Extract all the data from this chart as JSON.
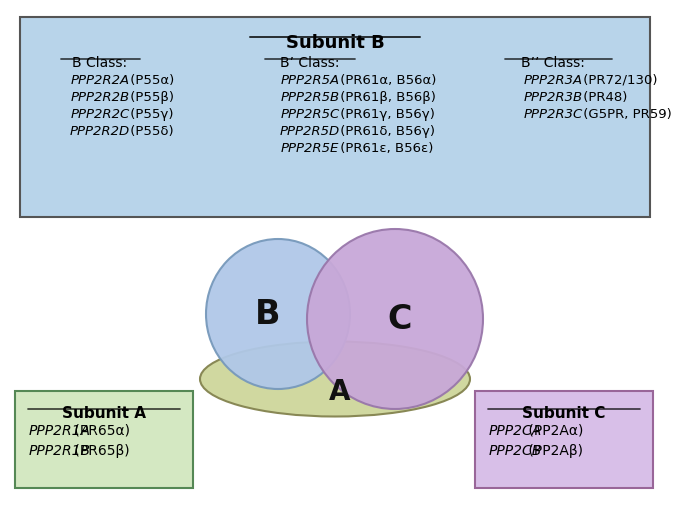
{
  "title": "Subunit B",
  "bg_color": "#ffffff",
  "subunit_b_box_color": "#b8d4ea",
  "subunit_a_box_color": "#d4e8c2",
  "subunit_c_box_color": "#d8bfe8",
  "circle_b_color": "#b0c8e8",
  "circle_c_color": "#c8a8d8",
  "arc_a_color": "#d0d8a0",
  "b_class_header": "B Class:",
  "b_class_lines": [
    "PPP2R2A (P55α)",
    "PPP2R2B (P55β)",
    "PPP2R2C (P55γ)",
    "PPP2R2D (P55δ)"
  ],
  "bprime_class_header": "B’ Class:",
  "bprime_class_lines": [
    "PPP2R5A (PR61α, B56α)",
    "PPP2R5B (PR61β, B56β)",
    "PPP2R5C (PR61γ, B56γ)",
    "PPP2R5D (PR61δ, B56γ)",
    "PPP2R5E (PR61ε, B56ε)"
  ],
  "bdprime_class_header": "B’’ Class:",
  "bdprime_class_lines": [
    "PPP2R3A (PR72/130)",
    "PPP2R3B (PR48)",
    "PPP2R3C (G5PR, PR59)"
  ],
  "subunit_a_title": "Subunit A",
  "subunit_a_lines": [
    "PPP2R1A (PR65α)",
    "PPP2R1B (PR65β)"
  ],
  "subunit_c_title": "Subunit C",
  "subunit_c_lines": [
    "PPP2CA (PP2Aα)",
    "PPP2CB (PP2Aβ)"
  ]
}
